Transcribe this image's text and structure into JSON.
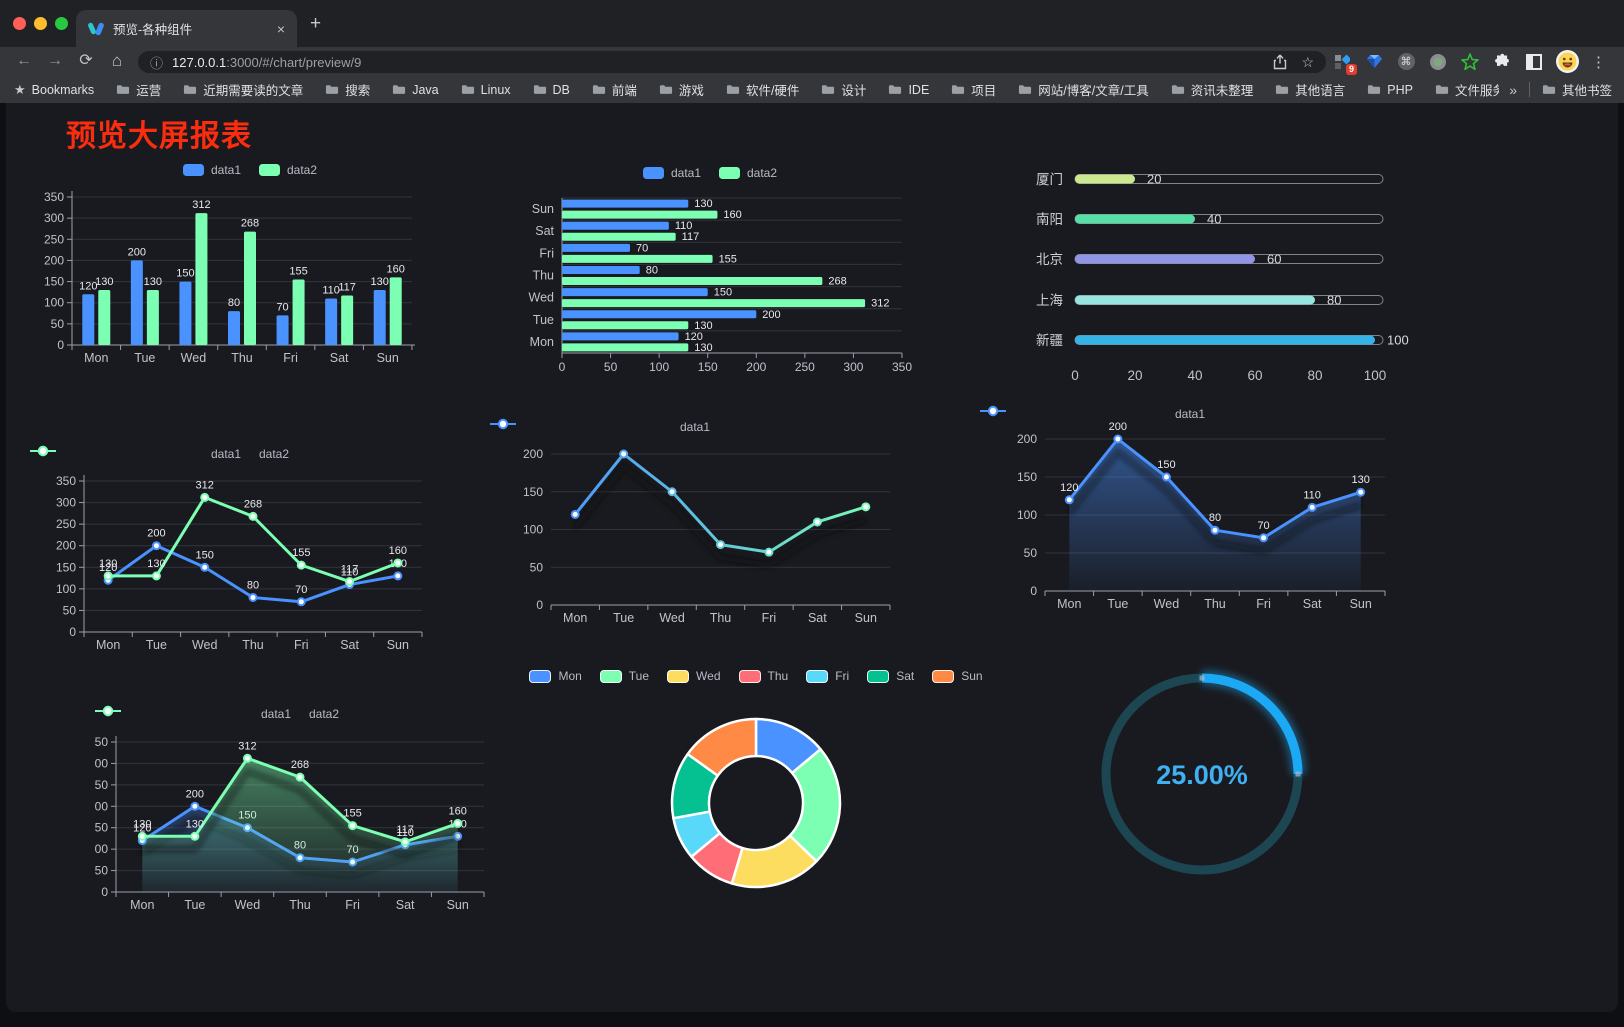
{
  "browser": {
    "tab": {
      "title": "预览-各种组件",
      "close_glyph": "×",
      "new_tab_glyph": "+"
    },
    "nav": {
      "back_glyph": "←",
      "forward_glyph": "→",
      "reload_glyph": "⟳",
      "home_glyph": "⌂"
    },
    "address": {
      "info_glyph": "ⓘ",
      "host": "127.0.0.1",
      "path": ":3000/#/chart/preview/9"
    },
    "actions": {
      "page_star_glyph": "☆",
      "extension_badge": "9",
      "command_glyph": "⌘",
      "menu_glyph": "⋮"
    },
    "bookmarks": {
      "star_glyph": "★",
      "label": "Bookmarks",
      "folders": [
        "运营",
        "近期需要读的文章",
        "搜索",
        "Java",
        "Linux",
        "DB",
        "前端",
        "游戏",
        "软件/硬件",
        "设计",
        "IDE",
        "项目",
        "网站/博客/文章/工具",
        "资讯未整理",
        "其他语言",
        "PHP",
        "文件服务器"
      ],
      "overflow_glyph": "»",
      "other_label": "其他书签"
    }
  },
  "page": {
    "title": "预览大屏报表"
  },
  "colors": {
    "accent_blue": "#4992ff",
    "accent_green": "#7cffb2",
    "title_red": "#fb2d0e",
    "grid_line": "#33343c",
    "axis_line": "#9b9eae",
    "tick_label": "#c0c2cc",
    "data_label": "#e8e8ec",
    "legend_text": "#b9bac6"
  },
  "chart_data": [
    {
      "id": "grouped-bar",
      "type": "bar",
      "legend_position": "top",
      "show_labels": true,
      "categories": [
        "Mon",
        "Tue",
        "Wed",
        "Thu",
        "Fri",
        "Sat",
        "Sun"
      ],
      "series": [
        {
          "name": "data1",
          "color": "#4992ff",
          "values": [
            120,
            200,
            150,
            80,
            70,
            110,
            130
          ]
        },
        {
          "name": "data2",
          "color": "#7cffb2",
          "values": [
            130,
            130,
            312,
            268,
            155,
            117,
            160
          ]
        }
      ],
      "ylim": [
        0,
        350
      ],
      "ytick_step": 50
    },
    {
      "id": "horizontal-bar",
      "type": "bar",
      "orientation": "horizontal",
      "legend_position": "top",
      "show_labels": true,
      "categories": [
        "Mon",
        "Tue",
        "Wed",
        "Thu",
        "Fri",
        "Sat",
        "Sun"
      ],
      "series": [
        {
          "name": "data1",
          "color": "#4992ff",
          "values": [
            120,
            200,
            150,
            80,
            70,
            110,
            130
          ]
        },
        {
          "name": "data2",
          "color": "#7cffb2",
          "values": [
            130,
            130,
            312,
            268,
            155,
            117,
            160
          ]
        }
      ],
      "xlim": [
        0,
        350
      ],
      "xtick_step": 50
    },
    {
      "id": "progress",
      "type": "bar",
      "orientation": "horizontal",
      "style": "capsule-progress",
      "show_labels": true,
      "items": [
        {
          "name": "厦门",
          "value": 20,
          "color": "#cbe790"
        },
        {
          "name": "南阳",
          "value": 40,
          "color": "#56dfa6"
        },
        {
          "name": "北京",
          "value": 60,
          "color": "#9095e5"
        },
        {
          "name": "上海",
          "value": 80,
          "color": "#98e5e0"
        },
        {
          "name": "新疆",
          "value": 100,
          "color": "#35b3e6"
        }
      ],
      "xlim": [
        0,
        100
      ],
      "xticks": [
        0,
        20,
        40,
        60,
        80,
        100
      ]
    },
    {
      "id": "line-basic",
      "type": "line",
      "legend_position": "top",
      "show_labels": true,
      "categories": [
        "Mon",
        "Tue",
        "Wed",
        "Thu",
        "Fri",
        "Sat",
        "Sun"
      ],
      "series": [
        {
          "name": "data1",
          "color": "#4992ff",
          "values": [
            120,
            200,
            150,
            80,
            70,
            110,
            130
          ]
        },
        {
          "name": "data2",
          "color": "#7cffb2",
          "values": [
            130,
            130,
            312,
            268,
            155,
            117,
            160
          ]
        }
      ],
      "ylim": [
        0,
        350
      ],
      "ytick_step": 50
    },
    {
      "id": "line-gradient",
      "type": "line",
      "legend_position": "top",
      "show_labels": false,
      "shadow": true,
      "categories": [
        "Mon",
        "Tue",
        "Wed",
        "Thu",
        "Fri",
        "Sat",
        "Sun"
      ],
      "series": [
        {
          "name": "data1",
          "color": "#4992ff",
          "gradient": [
            "#4992ff",
            "#7cffb2"
          ],
          "values": [
            120,
            200,
            150,
            80,
            70,
            110,
            130
          ]
        }
      ],
      "ylim": [
        0,
        200
      ],
      "ytick_step": 50
    },
    {
      "id": "line-area",
      "type": "area",
      "legend_position": "top",
      "show_labels": true,
      "categories": [
        "Mon",
        "Tue",
        "Wed",
        "Thu",
        "Fri",
        "Sat",
        "Sun"
      ],
      "series": [
        {
          "name": "data1",
          "color": "#4992ff",
          "area": true,
          "values": [
            120,
            200,
            150,
            80,
            70,
            110,
            130
          ]
        }
      ],
      "ylim": [
        0,
        200
      ],
      "ytick_step": 50
    },
    {
      "id": "line-area-two",
      "type": "area",
      "legend_position": "top",
      "show_labels": true,
      "categories": [
        "Mon",
        "Tue",
        "Wed",
        "Thu",
        "Fri",
        "Sat",
        "Sun"
      ],
      "series": [
        {
          "name": "data1",
          "color": "#4992ff",
          "area": true,
          "values": [
            120,
            200,
            150,
            80,
            70,
            110,
            130
          ]
        },
        {
          "name": "data2",
          "color": "#7cffb2",
          "area": true,
          "values": [
            130,
            130,
            312,
            268,
            155,
            117,
            160
          ]
        }
      ],
      "ylim": [
        0,
        350
      ],
      "ytick_step": 50
    },
    {
      "id": "donut",
      "type": "pie",
      "legend_position": "top",
      "inner_radius_ratio": 0.56,
      "items": [
        {
          "name": "Mon",
          "value": 120,
          "color": "#4992ff"
        },
        {
          "name": "Tue",
          "value": 200,
          "color": "#7cffb2"
        },
        {
          "name": "Wed",
          "value": 150,
          "color": "#fddd60"
        },
        {
          "name": "Thu",
          "value": 80,
          "color": "#ff6e76"
        },
        {
          "name": "Fri",
          "value": 70,
          "color": "#58d9f9"
        },
        {
          "name": "Sat",
          "value": 110,
          "color": "#05c091"
        },
        {
          "name": "Sun",
          "value": 130,
          "color": "#ff8a45"
        }
      ]
    },
    {
      "id": "gauge",
      "type": "gauge",
      "value": 25,
      "range": [
        0,
        100
      ],
      "display": "25.00%",
      "color": "#1ba9f5",
      "track_color": "#1c4652",
      "text_color": "#3fb0f2"
    }
  ]
}
